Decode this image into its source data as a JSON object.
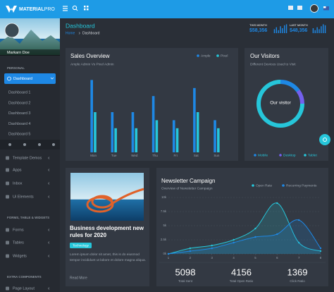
{
  "topbar": {
    "brand_bold": "MATERIAL",
    "brand_light": "PRO"
  },
  "sidebar": {
    "user": "Markarn Doe",
    "heading_1": "PERSONAL",
    "active": "Dashboard",
    "submenu": [
      "Dashboard 1",
      "Dashboard 2",
      "Dashboard 3",
      "Dashboard 4",
      "Dashboard 5"
    ],
    "menu_1": [
      "Template Demos",
      "Apps",
      "Inbox",
      "Ui Elements"
    ],
    "heading_2": "FORMS, TABLE & WIDGETS",
    "menu_2": [
      "Forms",
      "Tables",
      "Widgets"
    ],
    "heading_3": "EXTRA COMPONENTS",
    "menu_3": [
      "Page Layout"
    ]
  },
  "page_header": {
    "title": "Dashboard",
    "breadcrumb": [
      "Home",
      "Dashboard"
    ]
  },
  "stats": [
    {
      "label": "THIS MONTH",
      "value": "$58,356"
    },
    {
      "label": "LAST MONTH",
      "value": "$48,356"
    }
  ],
  "blog": {
    "title": "Business development new rules for 2020",
    "tag": "Technology",
    "text": "Lorem ipsum dolor sit amet, this is do eiusmod tempor incididunt ut labore et dolore magna aliqua.",
    "link": "Read More"
  },
  "newsletter_stats": [
    {
      "value": "5098",
      "label": "Total Sent"
    },
    {
      "value": "4156",
      "label": "Total Open Ratio"
    },
    {
      "value": "1369",
      "label": "Click Ratio"
    }
  ],
  "chart_data": [
    {
      "type": "bar",
      "values": [
        4,
        6,
        3,
        7,
        5,
        8,
        9
      ],
      "color": "#1e88e5",
      "ylim": [
        0,
        10
      ]
    },
    {
      "type": "bar",
      "values": [
        5,
        3,
        6,
        4,
        7,
        9,
        8
      ],
      "color": "#1e88e5",
      "ylim": [
        0,
        10
      ]
    },
    {
      "type": "bar",
      "title": "Sales Overview",
      "subtitle": "Ample Admin Vs Pixel Admin",
      "categories": [
        "Mon",
        "Tue",
        "Wed",
        "Thu",
        "Fri",
        "Sat",
        "Sun"
      ],
      "series": [
        {
          "name": "Ample",
          "color": "#1e88e5",
          "values": [
            9,
            5,
            5,
            7,
            4,
            8,
            4
          ]
        },
        {
          "name": "Pixel",
          "color": "#26c6da",
          "values": [
            5,
            3,
            3,
            4,
            3,
            5,
            3
          ]
        }
      ],
      "ylim": [
        0,
        10
      ],
      "legend": "top-right"
    },
    {
      "type": "pie",
      "title": "Our Visitors",
      "subtitle": "Different Devices Used to Visit",
      "center_label": "Our visitor",
      "categories": [
        "Mobile",
        "Desktop",
        "Tablet"
      ],
      "values": [
        15,
        10,
        75
      ],
      "colors": [
        "#1e88e5",
        "#7460ee",
        "#26c6da"
      ],
      "legend": "bottom"
    },
    {
      "type": "line",
      "title": "Newsletter Campaign",
      "subtitle": "Overview of Newsletter Campaign",
      "x": [
        1,
        2,
        3,
        4,
        5,
        6,
        7,
        8
      ],
      "series": [
        {
          "name": "Open Rate",
          "color": "#26c6da",
          "values": [
            0,
            1000,
            1500,
            2500,
            4500,
            9000,
            2000,
            500
          ]
        },
        {
          "name": "Recurring Payments",
          "color": "#1e88e5",
          "values": [
            0,
            500,
            1000,
            2000,
            3000,
            3500,
            6000,
            1000
          ]
        }
      ],
      "xlim": [
        1,
        8
      ],
      "xticks": [
        1,
        2,
        3,
        4,
        5,
        6,
        7,
        8
      ],
      "ylim": [
        0,
        10000
      ],
      "yticks": [
        {
          "value": 0,
          "label": "0k"
        },
        {
          "value": 2500,
          "label": "2.5k"
        },
        {
          "value": 5000,
          "label": "5k"
        },
        {
          "value": 7500,
          "label": "7.5k"
        },
        {
          "value": 10000,
          "label": "10k"
        }
      ],
      "grid": true,
      "legend": "top-right"
    }
  ]
}
